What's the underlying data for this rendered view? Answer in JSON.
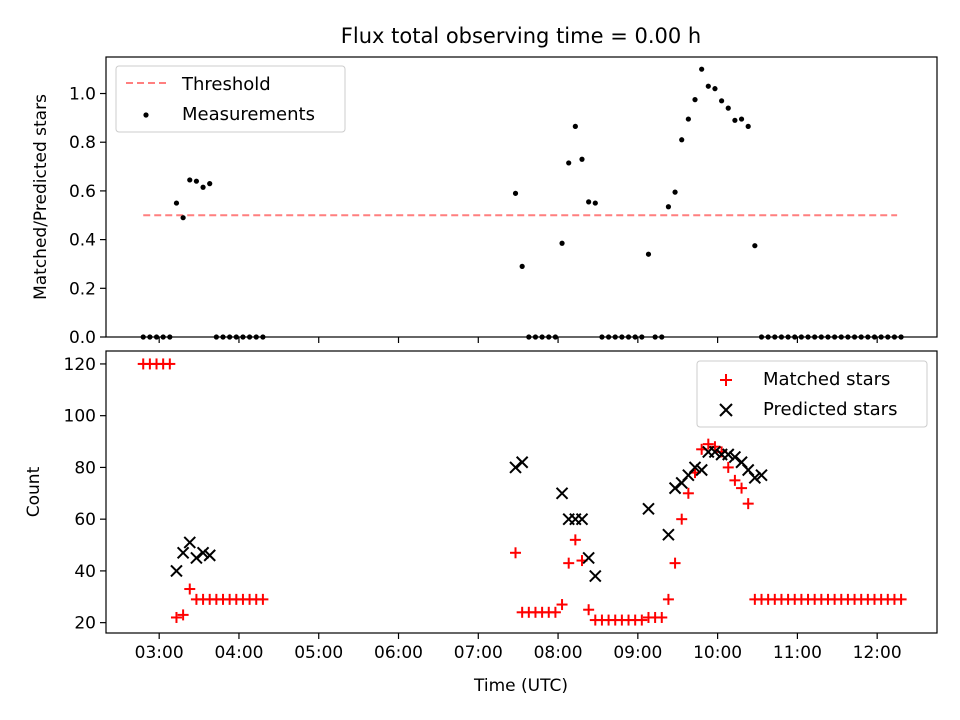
{
  "chart_data": [
    {
      "type": "scatter",
      "title": "Flux total observing time = 0.00 h",
      "xlabel": "",
      "ylabel": "Matched/Predicted stars",
      "xlim": [
        "02:20",
        "12:45"
      ],
      "ylim": [
        0,
        1.15
      ],
      "yticks": [
        "0.0",
        "0.2",
        "0.4",
        "0.6",
        "0.8",
        "1.0"
      ],
      "legend": {
        "placement": "top-left",
        "entries": [
          "Threshold",
          "Measurements"
        ]
      },
      "threshold": {
        "name": "Threshold",
        "value": 0.5,
        "x_range": [
          "02:48",
          "12:15"
        ],
        "color": "#ff7f7f"
      },
      "series": [
        {
          "name": "Measurements",
          "color": "#000000",
          "points": [
            [
              "02:48",
              0
            ],
            [
              "02:53",
              0
            ],
            [
              "02:58",
              0
            ],
            [
              "03:03",
              0
            ],
            [
              "03:08",
              0
            ],
            [
              "03:13",
              0.55
            ],
            [
              "03:18",
              0.49
            ],
            [
              "03:23",
              0.645
            ],
            [
              "03:28",
              0.64
            ],
            [
              "03:33",
              0.615
            ],
            [
              "03:38",
              0.63
            ],
            [
              "03:43",
              0
            ],
            [
              "03:48",
              0
            ],
            [
              "03:53",
              0
            ],
            [
              "03:58",
              0
            ],
            [
              "04:03",
              0
            ],
            [
              "04:08",
              0
            ],
            [
              "04:13",
              0
            ],
            [
              "04:18",
              0
            ],
            [
              "07:28",
              0.59
            ],
            [
              "07:33",
              0.29
            ],
            [
              "07:38",
              0
            ],
            [
              "07:43",
              0
            ],
            [
              "07:48",
              0
            ],
            [
              "07:53",
              0
            ],
            [
              "07:58",
              0
            ],
            [
              "08:03",
              0.385
            ],
            [
              "08:08",
              0.715
            ],
            [
              "08:13",
              0.865
            ],
            [
              "08:18",
              0.73
            ],
            [
              "08:23",
              0.555
            ],
            [
              "08:28",
              0.55
            ],
            [
              "08:33",
              0
            ],
            [
              "08:38",
              0
            ],
            [
              "08:43",
              0
            ],
            [
              "08:48",
              0
            ],
            [
              "08:53",
              0
            ],
            [
              "08:58",
              0
            ],
            [
              "09:03",
              0
            ],
            [
              "09:08",
              0.34
            ],
            [
              "09:13",
              0
            ],
            [
              "09:18",
              0
            ],
            [
              "09:23",
              0.535
            ],
            [
              "09:28",
              0.595
            ],
            [
              "09:33",
              0.81
            ],
            [
              "09:38",
              0.895
            ],
            [
              "09:43",
              0.975
            ],
            [
              "09:48",
              1.1
            ],
            [
              "09:53",
              1.03
            ],
            [
              "09:58",
              1.02
            ],
            [
              "10:03",
              0.97
            ],
            [
              "10:08",
              0.94
            ],
            [
              "10:13",
              0.89
            ],
            [
              "10:18",
              0.895
            ],
            [
              "10:23",
              0.865
            ],
            [
              "10:28",
              0.375
            ],
            [
              "10:33",
              0
            ],
            [
              "10:38",
              0
            ],
            [
              "10:43",
              0
            ],
            [
              "10:48",
              0
            ],
            [
              "10:53",
              0
            ],
            [
              "10:58",
              0
            ],
            [
              "11:03",
              0
            ],
            [
              "11:08",
              0
            ],
            [
              "11:13",
              0
            ],
            [
              "11:18",
              0
            ],
            [
              "11:23",
              0
            ],
            [
              "11:28",
              0
            ],
            [
              "11:33",
              0
            ],
            [
              "11:38",
              0
            ],
            [
              "11:43",
              0
            ],
            [
              "11:48",
              0
            ],
            [
              "11:53",
              0
            ],
            [
              "11:58",
              0
            ],
            [
              "12:03",
              0
            ],
            [
              "12:08",
              0
            ],
            [
              "12:13",
              0
            ],
            [
              "12:18",
              0
            ]
          ]
        }
      ]
    },
    {
      "type": "scatter",
      "title": "",
      "xlabel": "Time (UTC)",
      "ylabel": "Count",
      "xlim": [
        "02:20",
        "12:45"
      ],
      "ylim": [
        16,
        125
      ],
      "xticks": [
        "03:00",
        "04:00",
        "05:00",
        "06:00",
        "07:00",
        "08:00",
        "09:00",
        "10:00",
        "11:00",
        "12:00"
      ],
      "yticks": [
        "20",
        "40",
        "60",
        "80",
        "100",
        "120"
      ],
      "legend": {
        "placement": "top-right",
        "entries": [
          "Matched stars",
          "Predicted stars"
        ]
      },
      "series": [
        {
          "name": "Matched stars",
          "marker": "plus",
          "color": "#ff0000",
          "points": [
            [
              "02:48",
              120
            ],
            [
              "02:53",
              120
            ],
            [
              "02:58",
              120
            ],
            [
              "03:03",
              120
            ],
            [
              "03:08",
              120
            ],
            [
              "03:13",
              22
            ],
            [
              "03:18",
              23
            ],
            [
              "03:23",
              33
            ],
            [
              "03:28",
              29
            ],
            [
              "03:33",
              29
            ],
            [
              "03:38",
              29
            ],
            [
              "03:43",
              29
            ],
            [
              "03:48",
              29
            ],
            [
              "03:53",
              29
            ],
            [
              "03:58",
              29
            ],
            [
              "04:03",
              29
            ],
            [
              "04:08",
              29
            ],
            [
              "04:13",
              29
            ],
            [
              "04:18",
              29
            ],
            [
              "07:28",
              47
            ],
            [
              "07:33",
              24
            ],
            [
              "07:38",
              24
            ],
            [
              "07:43",
              24
            ],
            [
              "07:48",
              24
            ],
            [
              "07:53",
              24
            ],
            [
              "07:58",
              24
            ],
            [
              "08:03",
              27
            ],
            [
              "08:08",
              43
            ],
            [
              "08:13",
              52
            ],
            [
              "08:18",
              44
            ],
            [
              "08:23",
              25
            ],
            [
              "08:28",
              21
            ],
            [
              "08:33",
              21
            ],
            [
              "08:38",
              21
            ],
            [
              "08:43",
              21
            ],
            [
              "08:48",
              21
            ],
            [
              "08:53",
              21
            ],
            [
              "08:58",
              21
            ],
            [
              "09:03",
              21
            ],
            [
              "09:08",
              22
            ],
            [
              "09:13",
              22
            ],
            [
              "09:18",
              22
            ],
            [
              "09:23",
              29
            ],
            [
              "09:28",
              43
            ],
            [
              "09:33",
              60
            ],
            [
              "09:38",
              70
            ],
            [
              "09:43",
              78
            ],
            [
              "09:48",
              87
            ],
            [
              "09:53",
              89
            ],
            [
              "09:58",
              88
            ],
            [
              "10:03",
              86
            ],
            [
              "10:08",
              80
            ],
            [
              "10:13",
              75
            ],
            [
              "10:18",
              72
            ],
            [
              "10:23",
              66
            ],
            [
              "10:28",
              29
            ],
            [
              "10:33",
              29
            ],
            [
              "10:38",
              29
            ],
            [
              "10:43",
              29
            ],
            [
              "10:48",
              29
            ],
            [
              "10:53",
              29
            ],
            [
              "10:58",
              29
            ],
            [
              "11:03",
              29
            ],
            [
              "11:08",
              29
            ],
            [
              "11:13",
              29
            ],
            [
              "11:18",
              29
            ],
            [
              "11:23",
              29
            ],
            [
              "11:28",
              29
            ],
            [
              "11:33",
              29
            ],
            [
              "11:38",
              29
            ],
            [
              "11:43",
              29
            ],
            [
              "11:48",
              29
            ],
            [
              "11:53",
              29
            ],
            [
              "11:58",
              29
            ],
            [
              "12:03",
              29
            ],
            [
              "12:08",
              29
            ],
            [
              "12:13",
              29
            ],
            [
              "12:18",
              29
            ]
          ]
        },
        {
          "name": "Predicted stars",
          "marker": "x",
          "color": "#000000",
          "points": [
            [
              "03:13",
              40
            ],
            [
              "03:18",
              47
            ],
            [
              "03:23",
              51
            ],
            [
              "03:28",
              45
            ],
            [
              "03:33",
              47
            ],
            [
              "03:38",
              46
            ],
            [
              "07:28",
              80
            ],
            [
              "07:33",
              82
            ],
            [
              "08:03",
              70
            ],
            [
              "08:08",
              60
            ],
            [
              "08:13",
              60
            ],
            [
              "08:18",
              60
            ],
            [
              "08:23",
              45
            ],
            [
              "08:28",
              38
            ],
            [
              "09:08",
              64
            ],
            [
              "09:23",
              54
            ],
            [
              "09:28",
              72
            ],
            [
              "09:33",
              74
            ],
            [
              "09:38",
              77
            ],
            [
              "09:43",
              80
            ],
            [
              "09:48",
              79
            ],
            [
              "09:53",
              86
            ],
            [
              "09:58",
              86
            ],
            [
              "10:03",
              85
            ],
            [
              "10:08",
              85
            ],
            [
              "10:13",
              84
            ],
            [
              "10:18",
              82
            ],
            [
              "10:23",
              79
            ],
            [
              "10:28",
              76
            ],
            [
              "10:33",
              77
            ]
          ]
        }
      ]
    }
  ]
}
